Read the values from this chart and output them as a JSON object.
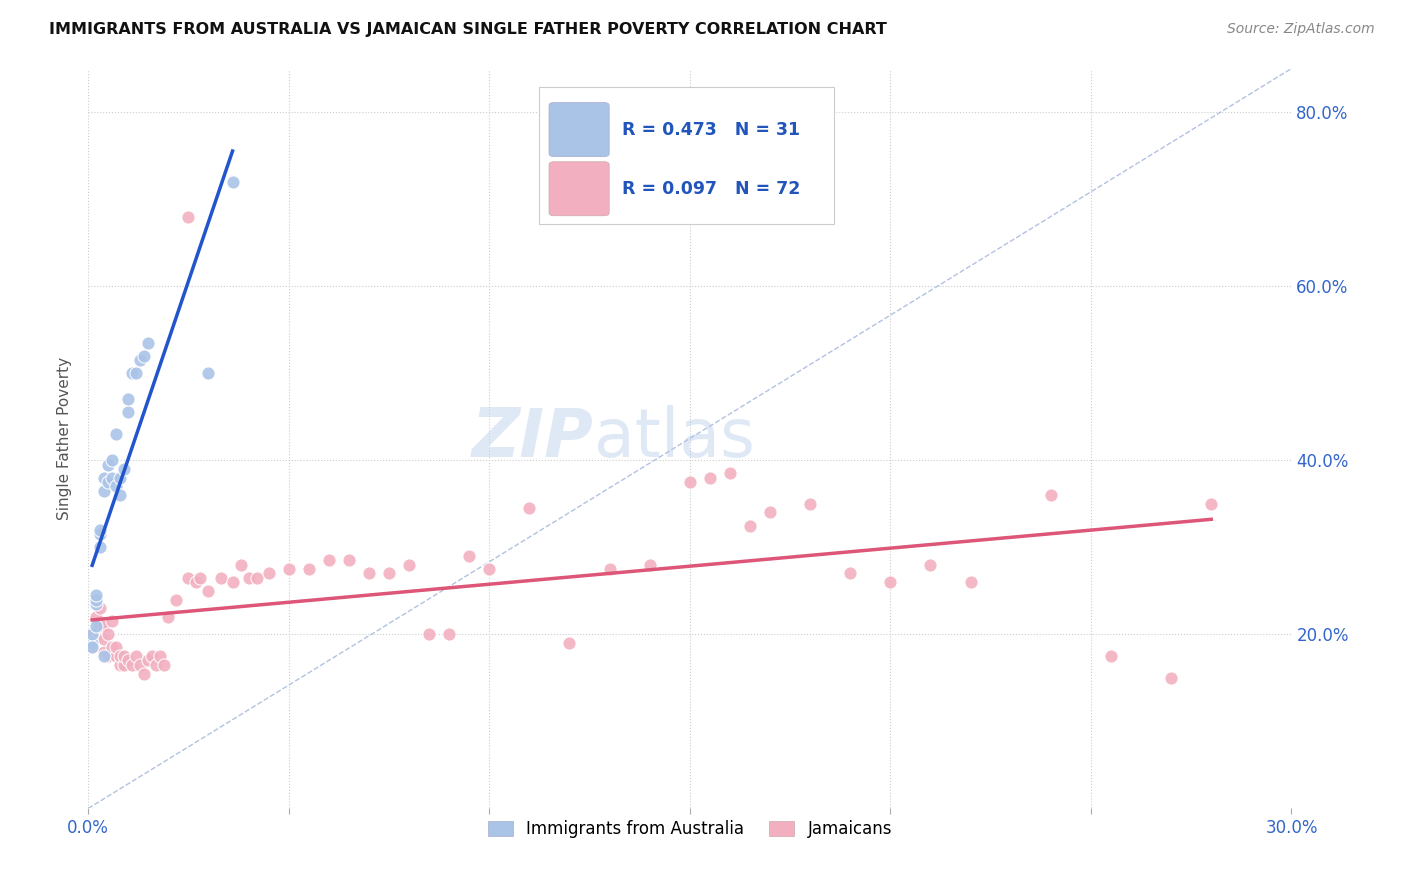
{
  "title": "IMMIGRANTS FROM AUSTRALIA VS JAMAICAN SINGLE FATHER POVERTY CORRELATION CHART",
  "source": "Source: ZipAtlas.com",
  "ylabel": "Single Father Poverty",
  "xlim": [
    0.0,
    0.3
  ],
  "ylim": [
    0.0,
    0.85
  ],
  "legend1_R": "0.473",
  "legend1_N": "31",
  "legend2_R": "0.097",
  "legend2_N": "72",
  "legend1_label": "Immigrants from Australia",
  "legend2_label": "Jamaicans",
  "blue_color": "#aac4e8",
  "pink_color": "#f2afc0",
  "blue_line_color": "#2255cc",
  "pink_line_color": "#dd5577",
  "legend_R_color": "#2255bb",
  "ref_line_color": "#aabbdd",
  "blue_scatter_x": [
    0.001,
    0.001,
    0.001,
    0.002,
    0.002,
    0.002,
    0.002,
    0.003,
    0.003,
    0.003,
    0.004,
    0.004,
    0.004,
    0.005,
    0.005,
    0.006,
    0.006,
    0.007,
    0.007,
    0.008,
    0.008,
    0.009,
    0.01,
    0.01,
    0.011,
    0.012,
    0.013,
    0.014,
    0.015,
    0.03,
    0.036
  ],
  "blue_scatter_y": [
    0.19,
    0.2,
    0.185,
    0.21,
    0.235,
    0.24,
    0.245,
    0.3,
    0.315,
    0.32,
    0.175,
    0.365,
    0.38,
    0.375,
    0.395,
    0.38,
    0.4,
    0.43,
    0.37,
    0.38,
    0.36,
    0.39,
    0.455,
    0.47,
    0.5,
    0.5,
    0.515,
    0.52,
    0.535,
    0.5,
    0.72
  ],
  "pink_scatter_x": [
    0.001,
    0.001,
    0.002,
    0.002,
    0.003,
    0.003,
    0.003,
    0.004,
    0.004,
    0.004,
    0.005,
    0.005,
    0.006,
    0.006,
    0.007,
    0.007,
    0.008,
    0.008,
    0.009,
    0.009,
    0.01,
    0.011,
    0.012,
    0.013,
    0.014,
    0.015,
    0.016,
    0.017,
    0.018,
    0.019,
    0.02,
    0.022,
    0.025,
    0.027,
    0.028,
    0.03,
    0.033,
    0.036,
    0.038,
    0.04,
    0.042,
    0.045,
    0.05,
    0.055,
    0.06,
    0.065,
    0.07,
    0.075,
    0.08,
    0.085,
    0.09,
    0.095,
    0.1,
    0.11,
    0.12,
    0.13,
    0.14,
    0.15,
    0.16,
    0.17,
    0.18,
    0.19,
    0.2,
    0.21,
    0.22,
    0.24,
    0.255,
    0.27,
    0.28,
    0.155,
    0.165,
    0.025
  ],
  "pink_scatter_y": [
    0.185,
    0.2,
    0.195,
    0.22,
    0.2,
    0.21,
    0.23,
    0.18,
    0.195,
    0.21,
    0.175,
    0.2,
    0.185,
    0.215,
    0.175,
    0.185,
    0.165,
    0.175,
    0.165,
    0.175,
    0.17,
    0.165,
    0.175,
    0.165,
    0.155,
    0.17,
    0.175,
    0.165,
    0.175,
    0.165,
    0.22,
    0.24,
    0.265,
    0.26,
    0.265,
    0.25,
    0.265,
    0.26,
    0.28,
    0.265,
    0.265,
    0.27,
    0.275,
    0.275,
    0.285,
    0.285,
    0.27,
    0.27,
    0.28,
    0.2,
    0.2,
    0.29,
    0.275,
    0.345,
    0.19,
    0.275,
    0.28,
    0.375,
    0.385,
    0.34,
    0.35,
    0.27,
    0.26,
    0.28,
    0.26,
    0.36,
    0.175,
    0.15,
    0.35,
    0.38,
    0.325,
    0.68
  ]
}
